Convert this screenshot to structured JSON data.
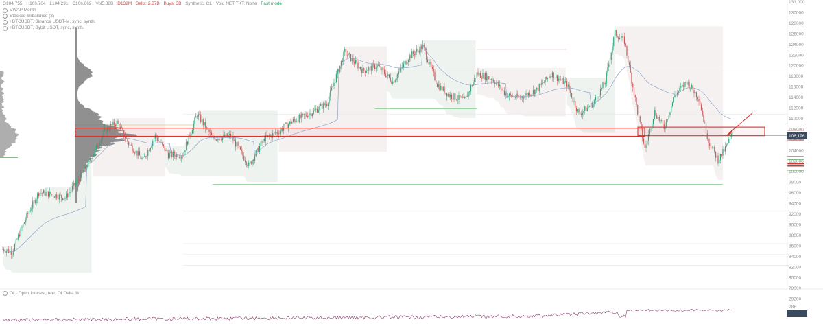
{
  "ohlc": {
    "open": "O104,755",
    "high": "H106,704",
    "low": "L104,291",
    "close": "C106,062",
    "vol": "Vol5.88B",
    "vol_delta": "D132M",
    "sells": "Sells: 2.87B",
    "buys": "Buys: 3B",
    "synthetic": "Synthetic: CL",
    "void": "Void NET TKT: None",
    "fast_mode": "Fast mode"
  },
  "legend": [
    {
      "label": "VWAP Month"
    },
    {
      "label": "Stacked Imbalance (3)"
    },
    {
      "label": "+BTCUSDT, Binance USDT-M, sync, synth."
    },
    {
      "label": "+BTCUSDT, Bybit USDT, sync, synth."
    }
  ],
  "oscillator": {
    "title": "OI - Open Interest, text: OI Delta %",
    "axis_labels": [
      "28B",
      "18B"
    ]
  },
  "price_axis": {
    "labels": [
      "131,000",
      "130000",
      "128000",
      "126000",
      "124000",
      "122000",
      "120000",
      "118000",
      "116000",
      "114000",
      "112000",
      "110000",
      "108000",
      "106000",
      "104000",
      "102000",
      "100000",
      "98000",
      "96000",
      "94000",
      "92000",
      "90000",
      "88000",
      "86000",
      "84000",
      "82000",
      "80000",
      "78000",
      "29200"
    ],
    "current_price": "106,196",
    "current_price_color": "#3a4a5e"
  },
  "colors": {
    "up_candle": "#2fa37a",
    "down_candle": "#c45a5a",
    "highlight_box": "#d8342c",
    "annotation_arrow": "#d8342c",
    "volume_profile": "#7d7d7d",
    "level_green": "#5fbf6a",
    "level_red": "#d8342c",
    "value_area_fill": "#eef3ee",
    "oi_line": "#8a3b6e"
  },
  "chart_data": {
    "type": "candlestick",
    "title": "",
    "y_unit": "USD",
    "ylim": [
      78000,
      131000
    ],
    "anchors": [
      [
        0,
        85000
      ],
      [
        8,
        84500
      ],
      [
        15,
        88500
      ],
      [
        22,
        92000
      ],
      [
        30,
        95500
      ],
      [
        40,
        95200
      ],
      [
        52,
        94500
      ],
      [
        62,
        97500
      ],
      [
        72,
        101000
      ],
      [
        85,
        107000
      ],
      [
        95,
        108500
      ],
      [
        105,
        104500
      ],
      [
        117,
        101500
      ],
      [
        127,
        106000
      ],
      [
        138,
        102500
      ],
      [
        150,
        102500
      ],
      [
        162,
        110000
      ],
      [
        175,
        105500
      ],
      [
        190,
        106000
      ],
      [
        205,
        100500
      ],
      [
        218,
        105500
      ],
      [
        228,
        106500
      ],
      [
        240,
        108500
      ],
      [
        255,
        110000
      ],
      [
        270,
        112000
      ],
      [
        285,
        121500
      ],
      [
        300,
        118000
      ],
      [
        312,
        119000
      ],
      [
        325,
        116000
      ],
      [
        338,
        120500
      ],
      [
        350,
        122500
      ],
      [
        362,
        115500
      ],
      [
        372,
        113500
      ],
      [
        385,
        112500
      ],
      [
        395,
        117500
      ],
      [
        408,
        116500
      ],
      [
        420,
        113500
      ],
      [
        430,
        113000
      ],
      [
        445,
        114500
      ],
      [
        457,
        117500
      ],
      [
        470,
        115500
      ],
      [
        480,
        110000
      ],
      [
        492,
        112000
      ],
      [
        502,
        116000
      ],
      [
        510,
        125000
      ],
      [
        518,
        123500
      ],
      [
        528,
        111500
      ],
      [
        535,
        103500
      ],
      [
        543,
        110500
      ],
      [
        551,
        107500
      ],
      [
        560,
        113500
      ],
      [
        570,
        116000
      ],
      [
        580,
        113000
      ],
      [
        588,
        105000
      ],
      [
        596,
        101500
      ],
      [
        603,
        104000
      ],
      [
        608,
        106500
      ]
    ],
    "levels": {
      "value_area_box": {
        "from": 107200,
        "to": 106200
      },
      "right_box": {
        "from": 107000,
        "to": 105800
      },
      "right_markers": [
        107800,
        107000,
        106000,
        105200,
        102200,
        101600,
        100800,
        100400,
        99600
      ]
    }
  }
}
